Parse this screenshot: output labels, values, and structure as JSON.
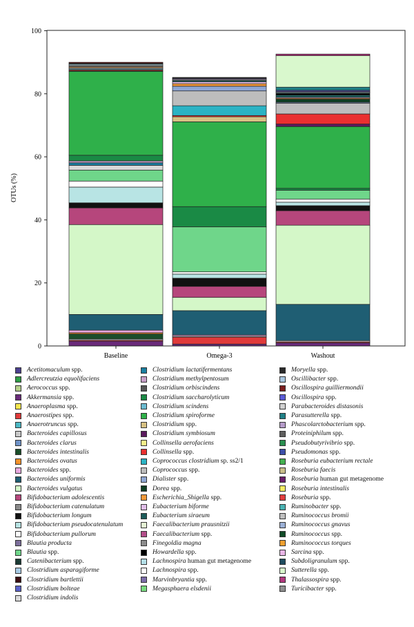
{
  "chart_data": {
    "type": "bar",
    "stacked": true,
    "ylabel": "OTUs (%)",
    "xlabel": "",
    "ylim": [
      0,
      100
    ],
    "yticks": [
      0,
      20,
      40,
      60,
      80,
      100
    ],
    "grid": false,
    "legend_position": "bottom",
    "categories": [
      "Baseline",
      "Omega-3",
      "Washout"
    ],
    "series": [
      {
        "name": "Acetitomaculum spp.",
        "color": "#4b3f8f",
        "values": [
          0,
          0,
          0
        ]
      },
      {
        "name": "Adlercreutzia equolifaciens",
        "color": "#2e9d45",
        "values": [
          0,
          0,
          0
        ]
      },
      {
        "name": "Aerococcus spp.",
        "color": "#b5cf8a",
        "values": [
          0,
          0,
          0
        ]
      },
      {
        "name": "Akkermansia spp.",
        "color": "#6a2a7a",
        "values": [
          1.5,
          0.6,
          1.0
        ]
      },
      {
        "name": "Anaeroplasma spp.",
        "color": "#f3e64e",
        "values": [
          0,
          0,
          0
        ]
      },
      {
        "name": "Anaerostipes spp.",
        "color": "#e03a3a",
        "values": [
          0.3,
          2.2,
          0.3
        ]
      },
      {
        "name": "Anaerotruncus spp.",
        "color": "#4bb8c4",
        "values": [
          0,
          0,
          0
        ]
      },
      {
        "name": "Bacteroides capillosus",
        "color": "#c9c9c9",
        "values": [
          0.4,
          0.3,
          0.4
        ]
      },
      {
        "name": "Bacteroides clarus",
        "color": "#6f93c8",
        "values": [
          0,
          0,
          0
        ]
      },
      {
        "name": "Bacteroides intestinalis",
        "color": "#1a4d2a",
        "values": [
          1.6,
          0,
          0
        ]
      },
      {
        "name": "Bacteroides ovatus",
        "color": "#f3922a",
        "values": [
          0.4,
          0,
          0
        ]
      },
      {
        "name": "Bacteroides spp.",
        "color": "#e8a9df",
        "values": [
          0.8,
          0.4,
          0
        ]
      },
      {
        "name": "Bacteroides uniformis",
        "color": "#1f5e73",
        "values": [
          5.0,
          7.7,
          11.5
        ]
      },
      {
        "name": "Bacteroides vulgatus",
        "color": "#d4f7c8",
        "values": [
          28.5,
          4.2,
          25.1
        ]
      },
      {
        "name": "Bifidobacterium adolescentis",
        "color": "#b6467c",
        "values": [
          5.3,
          3.5,
          4.6
        ]
      },
      {
        "name": "Bifidobacterium catenulatum",
        "color": "#8a8a8a",
        "values": [
          0,
          0,
          0
        ]
      },
      {
        "name": "Bifidobacterium longum",
        "color": "#111111",
        "values": [
          1.6,
          2.6,
          1.6
        ]
      },
      {
        "name": "Bifidobacterium pseudocatenulatum",
        "color": "#b8e4e4",
        "values": [
          5.0,
          1.3,
          1.1
        ]
      },
      {
        "name": "Bifidobacterium pullorum",
        "color": "#ffffff",
        "values": [
          1.9,
          0.7,
          1.0
        ]
      },
      {
        "name": "Blautia producta",
        "color": "#7d6f9c",
        "values": [
          0,
          0,
          0
        ]
      },
      {
        "name": "Blautia spp.",
        "color": "#6fd68a",
        "values": [
          3.5,
          14.3,
          2.8
        ]
      },
      {
        "name": "Catenibacterium spp.",
        "color": "#1b3a34",
        "values": [
          0,
          0,
          0
        ]
      },
      {
        "name": "Clostridium asparagiforme",
        "color": "#a8cbe5",
        "values": [
          0,
          0,
          0
        ]
      },
      {
        "name": "Clostridium bartlettii",
        "color": "#3a0d12",
        "values": [
          0,
          0,
          0
        ]
      },
      {
        "name": "Clostridium bolteae",
        "color": "#5b62c9",
        "values": [
          0,
          0,
          0
        ]
      },
      {
        "name": "Clostridium indolis",
        "color": "#d9d9d9",
        "values": [
          1.5,
          0,
          0
        ]
      },
      {
        "name": "Clostridium lactatifermentans",
        "color": "#1a7fa0",
        "values": [
          0.8,
          0,
          0
        ]
      },
      {
        "name": "Clostridium methylpentosum",
        "color": "#c79fc8",
        "values": [
          0.6,
          0,
          0
        ]
      },
      {
        "name": "Clostridium orbiscindens",
        "color": "#555555",
        "values": [
          0,
          0,
          0
        ]
      },
      {
        "name": "Clostridium saccharolyticum",
        "color": "#1a8a45",
        "values": [
          1.8,
          6.4,
          0.6
        ]
      },
      {
        "name": "Clostridium scindens",
        "color": "#6bbbd0",
        "values": [
          0,
          0,
          0
        ]
      },
      {
        "name": "Clostridium spiroforme",
        "color": "#2fb04a",
        "values": [
          26.6,
          26.9,
          19.6
        ]
      },
      {
        "name": "Clostridium spp.",
        "color": "#d7c184",
        "values": [
          0,
          1.6,
          0
        ]
      },
      {
        "name": "Clostridium symbiosum",
        "color": "#5b1a5e",
        "values": [
          0,
          0,
          0.8
        ]
      },
      {
        "name": "Collinsella aerofaciens",
        "color": "#f6f08a",
        "values": [
          0.2,
          0,
          0
        ]
      },
      {
        "name": "Collinsella spp.",
        "color": "#ea3030",
        "values": [
          0.3,
          0.4,
          3.2
        ]
      },
      {
        "name": "Coprococcus clostridium sp. ss2/1",
        "color": "#2bb3c4",
        "values": [
          0.3,
          3.1,
          0
        ]
      },
      {
        "name": "Coprococcus spp.",
        "color": "#bdbdbd",
        "values": [
          0.4,
          4.7,
          3.4
        ]
      },
      {
        "name": "Dialister spp.",
        "color": "#8fa6d3",
        "values": [
          0,
          1.5,
          0.3
        ]
      },
      {
        "name": "Dorea spp.",
        "color": "#0e3d22",
        "values": [
          0,
          0,
          1.0
        ]
      },
      {
        "name": "Escherichia_Shigella spp.",
        "color": "#f39a3a",
        "values": [
          0.3,
          0.8,
          0.3
        ]
      },
      {
        "name": "Eubacterium biforme",
        "color": "#e0bde8",
        "values": [
          0,
          0.6,
          0.3
        ]
      },
      {
        "name": "Eubacterium siraeum",
        "color": "#1d5c5a",
        "values": [
          0,
          0.4,
          0.7
        ]
      },
      {
        "name": "Faecalibacterium prausnitzii",
        "color": "#e6f5d5",
        "values": [
          0,
          0,
          0
        ]
      },
      {
        "name": "Faecalibacterium spp.",
        "color": "#b34e8a",
        "values": [
          0,
          0,
          0
        ]
      },
      {
        "name": "Finegoldia magna",
        "color": "#8c8c8c",
        "values": [
          0.4,
          0.4,
          0
        ]
      },
      {
        "name": "Howardella spp.",
        "color": "#000000",
        "values": [
          0,
          0,
          0.6
        ]
      },
      {
        "name": "Lachnospira human gut metagenome",
        "color": "#b4dfe8",
        "values": [
          0.4,
          0,
          0.3
        ]
      },
      {
        "name": "Lachnospira spp.",
        "color": "#ffffff",
        "values": [
          0,
          0,
          0
        ]
      },
      {
        "name": "Marvinbryantia spp.",
        "color": "#7b6ba8",
        "values": [
          0,
          0.3,
          0.3
        ]
      },
      {
        "name": "Megasphaera elsdenii",
        "color": "#79d97f",
        "values": [
          0,
          0,
          0
        ]
      },
      {
        "name": "Moryella spp.",
        "color": "#2a2a2a",
        "values": [
          0.3,
          0.3,
          0
        ]
      },
      {
        "name": "Oscillibacter spp.",
        "color": "#a9c6e0",
        "values": [
          0,
          0,
          0
        ]
      },
      {
        "name": "Oscillospira guilliermondii",
        "color": "#7a1e1e",
        "values": [
          0.3,
          0,
          0
        ]
      },
      {
        "name": "Oscillospira spp.",
        "color": "#5a5ad6",
        "values": [
          0,
          0,
          0.3
        ]
      },
      {
        "name": "Parabacteroides distasonis",
        "color": "#d0d0d0",
        "values": [
          0,
          0,
          0
        ]
      },
      {
        "name": "Parasutterella spp.",
        "color": "#1f7f86",
        "values": [
          0,
          0,
          1.0
        ]
      },
      {
        "name": "Phascolarctobacterium spp.",
        "color": "#b59bc9",
        "values": [
          0,
          0,
          0
        ]
      },
      {
        "name": "Proteiniphilum spp.",
        "color": "#5e5e5e",
        "values": [
          0,
          0,
          0
        ]
      },
      {
        "name": "Pseudobutyrivibrio spp.",
        "color": "#2a8f4f",
        "values": [
          0,
          0,
          0
        ]
      },
      {
        "name": "Pseudomonas spp.",
        "color": "#3c4ea8",
        "values": [
          0,
          0,
          0
        ]
      },
      {
        "name": "Roseburia eubacterium rectale",
        "color": "#43b04f",
        "values": [
          0,
          0,
          0
        ]
      },
      {
        "name": "Roseburia faecis",
        "color": "#c9be8a",
        "values": [
          0,
          0,
          0
        ]
      },
      {
        "name": "Roseburia human gut metagenome",
        "color": "#6b1f6b",
        "values": [
          0,
          0,
          0
        ]
      },
      {
        "name": "Roseburia intestinalis",
        "color": "#f4ec63",
        "values": [
          0,
          0,
          0
        ]
      },
      {
        "name": "Roseburia spp.",
        "color": "#e23e3e",
        "values": [
          0,
          0,
          0
        ]
      },
      {
        "name": "Ruminobacter spp.",
        "color": "#49b3b3",
        "values": [
          0,
          0,
          0
        ]
      },
      {
        "name": "Ruminococcus bromii",
        "color": "#bfbfbf",
        "values": [
          0,
          0,
          0
        ]
      },
      {
        "name": "Ruminococcus gnavus",
        "color": "#9bb0d6",
        "values": [
          0,
          0,
          0
        ]
      },
      {
        "name": "Ruminococcus spp.",
        "color": "#0f4a27",
        "values": [
          0,
          0,
          0
        ]
      },
      {
        "name": "Ruminococcus torques",
        "color": "#f0a030",
        "values": [
          0,
          0,
          0
        ]
      },
      {
        "name": "Sarcina spp.",
        "color": "#e9b5e6",
        "values": [
          0,
          0,
          0
        ]
      },
      {
        "name": "Subdoligranulum spp.",
        "color": "#1e4b5e",
        "values": [
          0,
          0,
          0
        ]
      },
      {
        "name": "Sutterella spp.",
        "color": "#d9f8cd",
        "values": [
          0,
          0,
          10.0
        ]
      },
      {
        "name": "Thalassospira spp.",
        "color": "#b2387e",
        "values": [
          0,
          0,
          0.5
        ]
      },
      {
        "name": "Turicibacter spp.",
        "color": "#8f8f8f",
        "values": [
          0,
          0,
          0
        ]
      }
    ]
  }
}
